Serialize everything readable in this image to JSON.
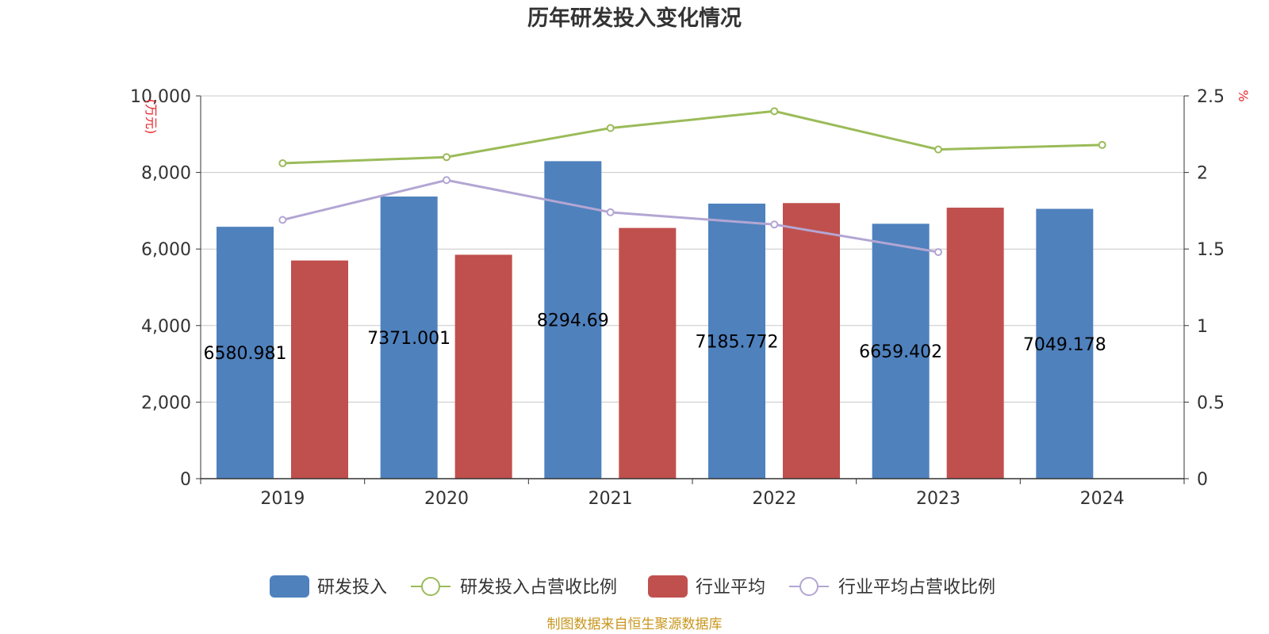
{
  "chart_data": {
    "type": "bar",
    "title": "历年研发投入变化情况",
    "categories": [
      "2019",
      "2020",
      "2021",
      "2022",
      "2023",
      "2024"
    ],
    "left_axis": {
      "unit": "(万元)",
      "ylim": [
        0,
        10000
      ],
      "ticks": [
        "0",
        "2,000",
        "4,000",
        "6,000",
        "8,000",
        "10,000"
      ]
    },
    "right_axis": {
      "unit": "%",
      "ylim": [
        0,
        2.5
      ],
      "ticks": [
        "0",
        "0.5",
        "1",
        "1.5",
        "2",
        "2.5"
      ]
    },
    "series": [
      {
        "name": "研发投入",
        "kind": "bar",
        "axis": "left",
        "color": "#4f81bd",
        "values": [
          6580.981,
          7371.001,
          8294.69,
          7185.772,
          6659.402,
          7049.178
        ],
        "labels": [
          "6580.981",
          "7371.001",
          "8294.69",
          "7185.772",
          "6659.402",
          "7049.178"
        ]
      },
      {
        "name": "研发投入占营收比例",
        "kind": "line",
        "axis": "right",
        "color": "#9bbb59",
        "values": [
          2.06,
          2.1,
          2.29,
          2.4,
          2.15,
          2.18
        ]
      },
      {
        "name": "行业平均",
        "kind": "bar",
        "axis": "left",
        "color": "#c0504d",
        "values": [
          5700,
          5850,
          6550,
          7200,
          7080,
          null
        ]
      },
      {
        "name": "行业平均占营收比例",
        "kind": "line",
        "axis": "right",
        "color": "#b3a6d3",
        "values": [
          1.69,
          1.95,
          1.74,
          1.66,
          1.48,
          null
        ]
      }
    ],
    "grid": true,
    "legend_position": "bottom"
  },
  "source_text": "制图数据来自恒生聚源数据库"
}
